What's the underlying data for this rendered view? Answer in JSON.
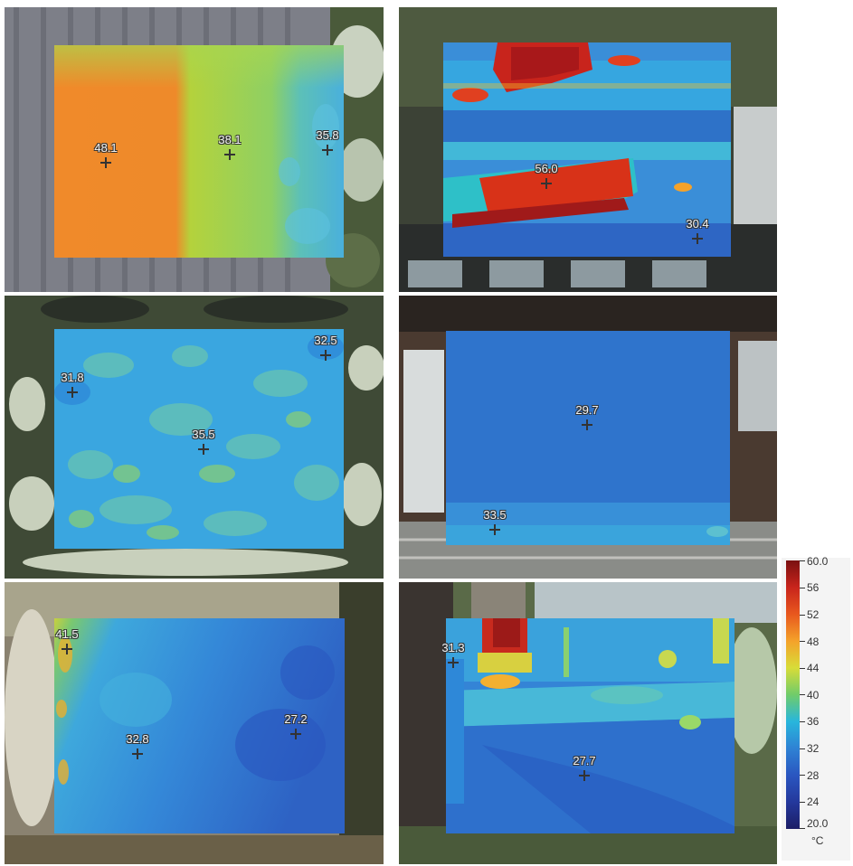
{
  "panels": [
    {
      "id": "p1",
      "markers": [
        "48.1",
        "38.1",
        "35.8"
      ]
    },
    {
      "id": "p2",
      "markers": [
        "56.0",
        "30.4"
      ]
    },
    {
      "id": "p3",
      "markers": [
        "32.5",
        "31.8",
        "35.5"
      ]
    },
    {
      "id": "p4",
      "markers": [
        "29.7",
        "33.5"
      ]
    },
    {
      "id": "p5",
      "markers": [
        "41.5",
        "32.8",
        "27.2"
      ]
    },
    {
      "id": "p6",
      "markers": [
        "31.3",
        "27.7"
      ]
    }
  ],
  "scale": {
    "labels": [
      "60.0",
      "56",
      "52",
      "48",
      "44",
      "40",
      "36",
      "32",
      "28",
      "24",
      "20.0"
    ],
    "unit": "°C"
  },
  "icons": [
    "crosshair-icon"
  ],
  "colors": {
    "hot": "#c8241c",
    "warm": "#f4a22a",
    "mid": "#70cc6a",
    "cool": "#28b6dc",
    "cold": "#2a56c0"
  }
}
